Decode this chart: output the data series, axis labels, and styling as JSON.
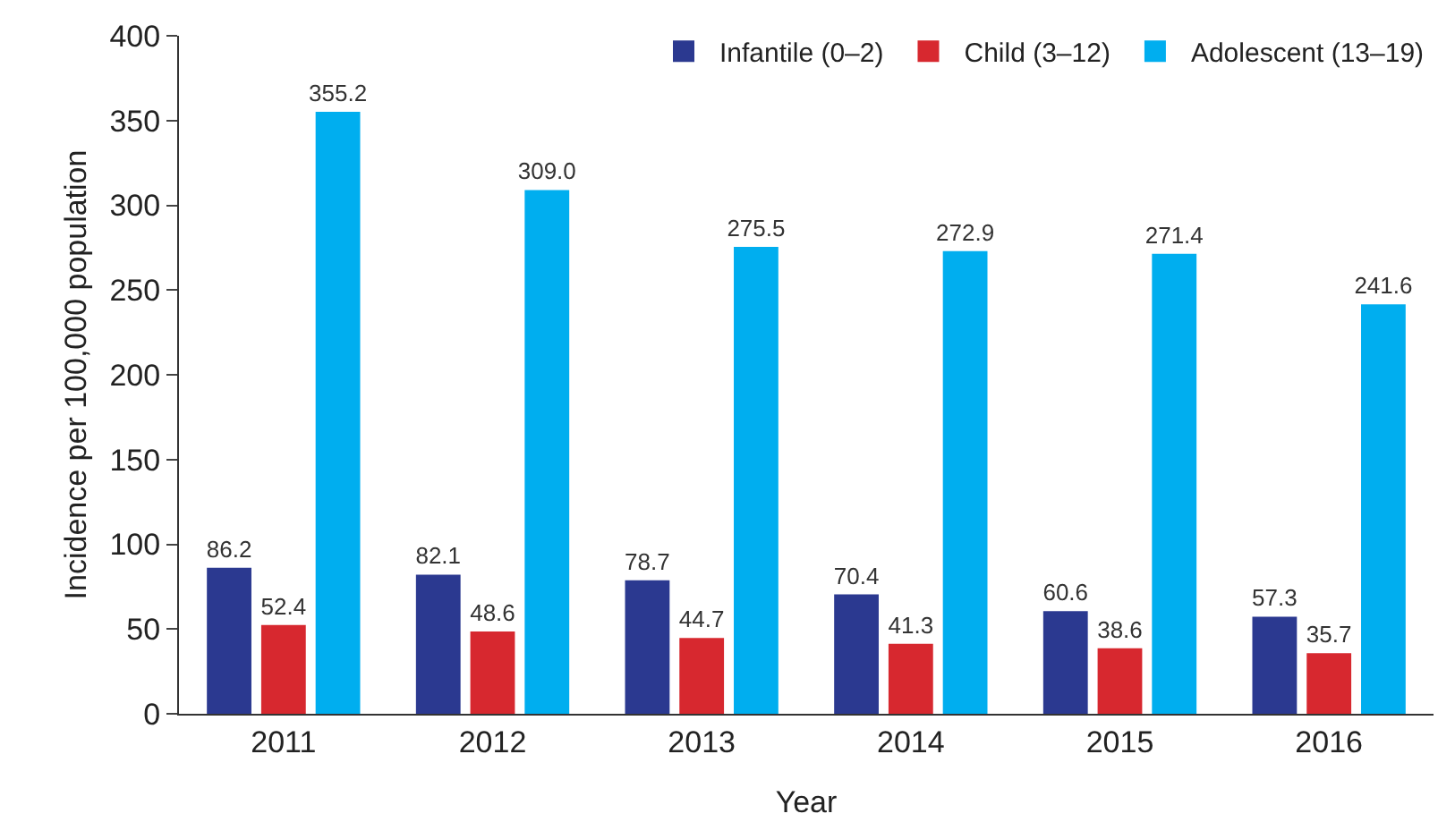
{
  "chart_data": {
    "type": "bar",
    "xlabel": "Year",
    "ylabel": "Incidence per 100,000 population",
    "categories": [
      "2011",
      "2012",
      "2013",
      "2014",
      "2015",
      "2016"
    ],
    "series": [
      {
        "name": "Infantile (0–2)",
        "color": "#2b3990",
        "values": [
          86.2,
          82.1,
          78.7,
          70.4,
          60.6,
          57.3
        ],
        "value_labels": [
          "86.2",
          "82.1",
          "78.7",
          "70.4",
          "60.6",
          "57.3"
        ]
      },
      {
        "name": "Child (3–12)",
        "color": "#d7282f",
        "values": [
          52.4,
          48.6,
          44.7,
          41.3,
          38.6,
          35.7
        ],
        "value_labels": [
          "52.4",
          "48.6",
          "44.7",
          "41.3",
          "38.6",
          "35.7"
        ]
      },
      {
        "name": "Adolescent (13–19)",
        "color": "#00aeef",
        "values": [
          355.2,
          309.0,
          275.5,
          272.9,
          271.4,
          241.6
        ],
        "value_labels": [
          "355.2",
          "309.0",
          "275.5",
          "272.9",
          "271.4",
          "241.6"
        ]
      }
    ],
    "ylim": [
      0,
      400
    ],
    "yticks": [
      0,
      50,
      100,
      150,
      200,
      250,
      300,
      350,
      400
    ],
    "legend": "top right"
  }
}
